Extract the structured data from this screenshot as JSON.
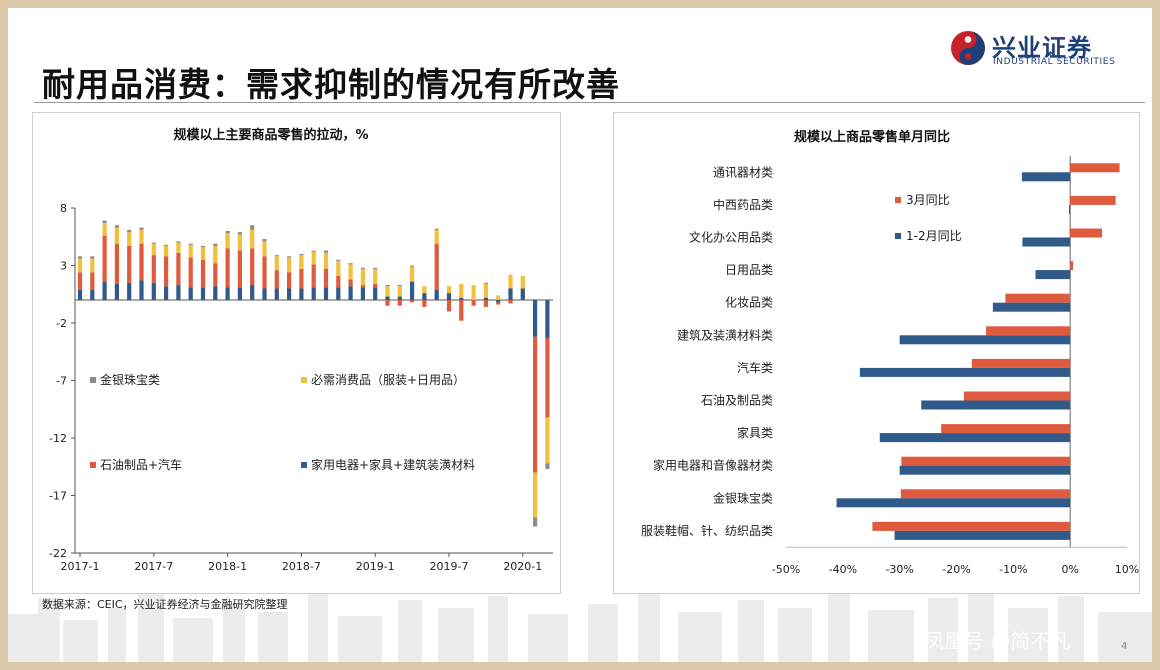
{
  "header": {
    "title": "耐用品消费：需求抑制的情况有所改善",
    "logo_name": "兴业证券",
    "logo_en": "INDUSTRIAL SECURITIES"
  },
  "footer": {
    "source": "数据来源：CEIC，兴业证券经济与金融研究院整理",
    "watermark": "凤凰号 @简不凡",
    "page_number": "4"
  },
  "colors": {
    "red": "#e05a3e",
    "blue": "#2f5a89",
    "yellow": "#f2c03b",
    "gray": "#8c8c8c"
  },
  "chart_data": [
    {
      "type": "bar",
      "stacked": true,
      "title": "规模以上主要商品零售的拉动，%",
      "x_tick_labels": [
        "2017-1",
        "2017-7",
        "2018-1",
        "2018-7",
        "2019-1",
        "2019-7",
        "2020-1"
      ],
      "y_ticks": [
        8,
        3,
        -2,
        -7,
        -12,
        -17,
        -22
      ],
      "ylim": [
        -22,
        8
      ],
      "legend_placement": "inside-plot",
      "categories": [
        "2017-1",
        "2017-2",
        "2017-3",
        "2017-4",
        "2017-5",
        "2017-6",
        "2017-7",
        "2017-8",
        "2017-9",
        "2017-10",
        "2017-11",
        "2017-12",
        "2018-1",
        "2018-2",
        "2018-3",
        "2018-4",
        "2018-5",
        "2018-6",
        "2018-7",
        "2018-8",
        "2018-9",
        "2018-10",
        "2018-11",
        "2018-12",
        "2019-1",
        "2019-2",
        "2019-3",
        "2019-4",
        "2019-5",
        "2019-6",
        "2019-7",
        "2019-8",
        "2019-9",
        "2019-10",
        "2019-11",
        "2019-12",
        "2020-1",
        "2020-2",
        "2020-3"
      ],
      "series": [
        {
          "name": "家用电器+家具+建筑装潢材料",
          "color": "#2f5a89",
          "values": [
            0.9,
            0.9,
            1.6,
            1.4,
            1.5,
            1.7,
            1.5,
            1.2,
            1.3,
            1.1,
            1.1,
            1.2,
            1.1,
            1.1,
            1.3,
            1.0,
            1.0,
            1.0,
            1.0,
            1.1,
            1.1,
            1.1,
            1.2,
            1.1,
            1.1,
            0.3,
            0.3,
            1.6,
            0.6,
            0.9,
            0.6,
            0.2,
            0.0,
            0.2,
            -0.2,
            1.0,
            1.0,
            -3.2,
            -3.3
          ]
        },
        {
          "name": "石油制品+汽车",
          "color": "#e05a3e",
          "values": [
            1.5,
            1.5,
            4.0,
            3.5,
            3.2,
            3.2,
            2.4,
            2.6,
            2.8,
            2.6,
            2.4,
            2.0,
            3.4,
            3.2,
            3.2,
            2.8,
            1.6,
            1.4,
            1.7,
            2.0,
            1.6,
            1.0,
            0.6,
            0.2,
            0.3,
            -0.5,
            -0.5,
            -0.2,
            -0.6,
            4.0,
            -1.0,
            -1.8,
            -0.5,
            -0.6,
            -0.2,
            -0.3,
            0.0,
            -11.8,
            -6.9
          ]
        },
        {
          "name": "必需消费品（服装+日用品）",
          "color": "#f2c03b",
          "values": [
            1.2,
            1.2,
            1.1,
            1.4,
            1.2,
            1.2,
            1.0,
            0.9,
            0.9,
            1.1,
            1.1,
            1.5,
            1.3,
            1.4,
            1.6,
            1.3,
            1.2,
            1.3,
            1.2,
            1.1,
            1.4,
            1.3,
            1.3,
            1.4,
            1.3,
            0.9,
            0.9,
            1.3,
            0.6,
            1.2,
            0.6,
            1.2,
            1.3,
            1.2,
            0.4,
            1.2,
            1.1,
            -3.9,
            -4.0
          ]
        },
        {
          "name": "金银珠宝类",
          "color": "#8c8c8c",
          "values": [
            0.2,
            0.2,
            0.2,
            0.2,
            0.2,
            0.2,
            0.1,
            0.1,
            0.1,
            0.1,
            0.1,
            0.2,
            0.2,
            0.2,
            0.4,
            0.2,
            0.1,
            0.1,
            0.1,
            0.1,
            0.2,
            0.1,
            0.1,
            0.1,
            0.1,
            0.1,
            0.1,
            0.1,
            0.0,
            0.1,
            0.0,
            0.0,
            0.0,
            0.1,
            0.0,
            0.0,
            0.0,
            -0.8,
            -0.5
          ]
        }
      ]
    },
    {
      "type": "bar",
      "orientation": "horizontal",
      "title": "规模以上商品零售单月同比",
      "categories": [
        "通讯器材类",
        "中西药品类",
        "文化办公用品类",
        "日用品类",
        "化妆品类",
        "建筑及装潢材料类",
        "汽车类",
        "石油及制品类",
        "家具类",
        "家用电器和音像器材类",
        "金银珠宝类",
        "服装鞋帽、针、纺织品类"
      ],
      "x_tick_labels": [
        "-50%",
        "-40%",
        "-30%",
        "-20%",
        "-10%",
        "0%",
        "10%"
      ],
      "xlim": [
        -50,
        10
      ],
      "legend_placement": "inside-plot",
      "series": [
        {
          "name": "3月同比",
          "color": "#e05a3e",
          "values": [
            8.7,
            8.0,
            5.6,
            0.5,
            -11.4,
            -14.8,
            -17.3,
            -18.7,
            -22.7,
            -29.7,
            -29.8,
            -34.8
          ]
        },
        {
          "name": "1-2月同比",
          "color": "#2f5a89",
          "values": [
            -8.5,
            -0.2,
            -8.4,
            -6.1,
            -13.6,
            -30.0,
            -37.0,
            -26.2,
            -33.5,
            -30.0,
            -41.1,
            -30.9
          ]
        }
      ]
    }
  ]
}
